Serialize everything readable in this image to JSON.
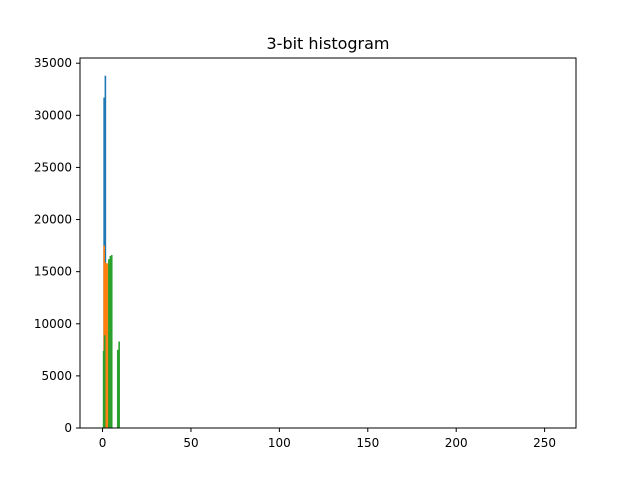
{
  "chart_data": {
    "type": "bar",
    "title": "3-bit histogram",
    "xlabel": "",
    "ylabel": "",
    "xlim": [
      -12.75,
      267.75
    ],
    "ylim": [
      0,
      35500
    ],
    "xticks": [
      0,
      50,
      100,
      150,
      200,
      250
    ],
    "yticks": [
      0,
      5000,
      10000,
      15000,
      20000,
      25000,
      30000,
      35000
    ],
    "grid": false,
    "legend": "none",
    "series": [
      {
        "color": "#1f77b4",
        "bars": [
          {
            "x": 0.9,
            "value": 31700
          },
          {
            "x": 1.6,
            "value": 33800
          }
        ]
      },
      {
        "color": "#ff7f0e",
        "bars": [
          {
            "x": 0.9,
            "value": 17500
          },
          {
            "x": 1.4,
            "value": 15900
          },
          {
            "x": 2.1,
            "value": 15800
          },
          {
            "x": 3.0,
            "value": 15800
          }
        ]
      },
      {
        "color": "#2ca02c",
        "bars": [
          {
            "x": 0.6,
            "value": 7400
          },
          {
            "x": 1.2,
            "value": 8900
          },
          {
            "x": 3.6,
            "value": 16200
          },
          {
            "x": 4.4,
            "value": 16500
          },
          {
            "x": 5.2,
            "value": 16600
          },
          {
            "x": 8.6,
            "value": 7500
          },
          {
            "x": 9.4,
            "value": 8300
          }
        ]
      }
    ]
  }
}
